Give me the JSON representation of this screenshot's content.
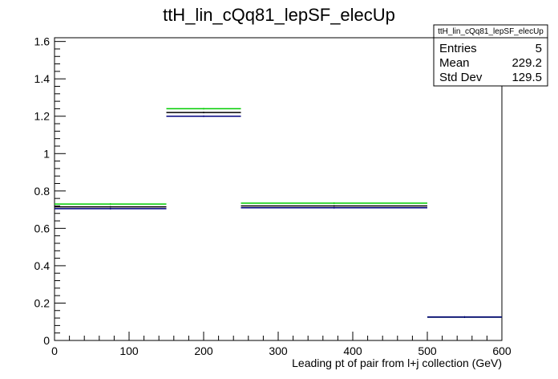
{
  "chart_data": {
    "type": "step",
    "title": "ttH_lin_cQq81_lepSF_elecUp",
    "xlabel": "Leading pt of pair from l+j collection (GeV)",
    "ylabel": "",
    "xlim": [
      0,
      600
    ],
    "ylim": [
      0,
      1.62
    ],
    "x_ticks": [
      "0",
      "100",
      "200",
      "300",
      "400",
      "500",
      "600"
    ],
    "y_ticks": [
      "0",
      "0.2",
      "0.4",
      "0.6",
      "0.8",
      "1",
      "1.2",
      "1.4",
      "1.6"
    ],
    "bins": [
      [
        0,
        150
      ],
      [
        150,
        250
      ],
      [
        250,
        500
      ],
      [
        500,
        600
      ]
    ],
    "series": [
      {
        "color": "#00cc00",
        "values": [
          0.73,
          1.24,
          0.735,
          0.125
        ]
      },
      {
        "color": "#000000",
        "values": [
          0.715,
          1.22,
          0.72,
          0.125
        ]
      },
      {
        "color": "#000080",
        "values": [
          0.705,
          1.2,
          0.71,
          0.125
        ]
      }
    ],
    "stats": {
      "name": "ttH_lin_cQq81_lepSF_elecUp",
      "rows": [
        {
          "label": "Entries",
          "value": "5"
        },
        {
          "label": "Mean",
          "value": "229.2"
        },
        {
          "label": "Std Dev",
          "value": "129.5"
        }
      ]
    }
  }
}
